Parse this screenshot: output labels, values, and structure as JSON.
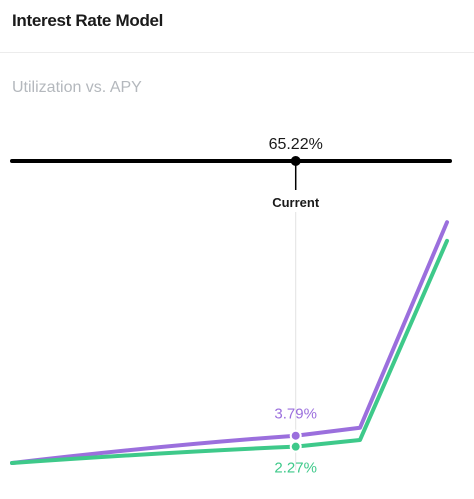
{
  "header": {
    "title": "Interest Rate Model"
  },
  "chart": {
    "subtitle": "Utilization vs. APY"
  },
  "chart_data": {
    "type": "line",
    "title": "Interest Rate Model",
    "subtitle": "Utilization vs. APY",
    "xlabel": "",
    "ylabel": "",
    "xlim": [
      0,
      100
    ],
    "ylim": [
      0,
      70
    ],
    "grid": false,
    "current": {
      "utilization": 65.22,
      "utilization_label": "65.22%",
      "marker_label": "Current"
    },
    "series": [
      {
        "color": "#9b6fdd",
        "x": [
          0,
          65.22,
          80,
          100
        ],
        "y": [
          0,
          3.79,
          4.9,
          60
        ],
        "current_label": "3.79%"
      },
      {
        "color": "#3ec98a",
        "x": [
          0,
          65.22,
          80,
          100
        ],
        "y": [
          0,
          2.27,
          3.2,
          55
        ],
        "current_label": "2.27%"
      }
    ],
    "colors": {
      "slider": "#000000",
      "guide": "#e3e3e3",
      "text": "#1a1a1a"
    }
  }
}
